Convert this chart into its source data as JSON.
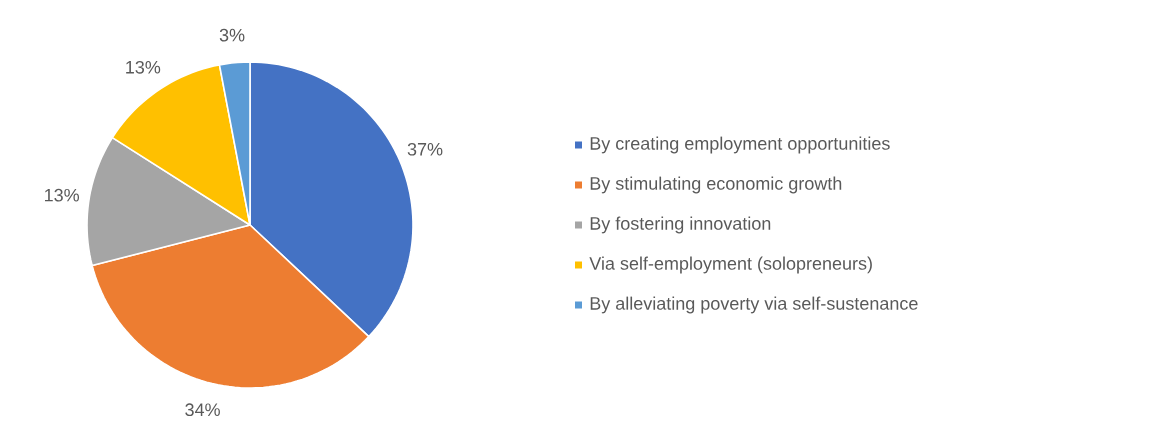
{
  "chart_data": {
    "type": "pie",
    "categories": [
      "By creating employment opportunities",
      "By stimulating economic growth",
      "By fostering innovation",
      "Via self-employment (solopreneurs)",
      "By alleviating poverty via self-sustenance"
    ],
    "values": [
      37,
      34,
      13,
      13,
      3
    ],
    "colors": [
      "#4472c4",
      "#ed7d31",
      "#a5a5a5",
      "#ffc000",
      "#5b9bd5"
    ],
    "value_labels": [
      "37%",
      "34%",
      "13%",
      "13%",
      "3%"
    ],
    "legend": "right"
  }
}
